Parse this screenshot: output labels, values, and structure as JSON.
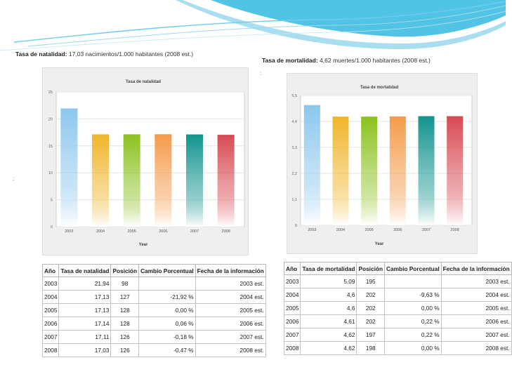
{
  "left": {
    "caption_label": "Tasa de natalidad:",
    "caption_value": "17,03 nacimientos/1.000 habitantes (2008 est.)",
    "table": {
      "headers": [
        "Año",
        "Tasa de natalidad",
        "Posición",
        "Cambio Porcentual",
        "Fecha de la información"
      ],
      "rows": [
        [
          "2003",
          "21,94",
          "98",
          "",
          "2003 est."
        ],
        [
          "2004",
          "17,13",
          "127",
          "-21,92 %",
          "2004 est."
        ],
        [
          "2005",
          "17,13",
          "128",
          "0,00 %",
          "2005 est."
        ],
        [
          "2006",
          "17,14",
          "128",
          "0,06 %",
          "2006 est."
        ],
        [
          "2007",
          "17,11",
          "126",
          "-0,18 %",
          "2007 est."
        ],
        [
          "2008",
          "17,03",
          "126",
          "-0,47 %",
          "2008 est."
        ]
      ]
    }
  },
  "right": {
    "caption_label": "Tasa de mortalidad:",
    "caption_value": "4,62 muertes/1.000 habitantes (2008 est.)",
    "table": {
      "headers": [
        "Año",
        "Tasa de mortalidad",
        "Posición",
        "Cambio Porcentual",
        "Fecha de la información"
      ],
      "rows": [
        [
          "2003",
          "5,09",
          "195",
          "",
          "2003 est."
        ],
        [
          "2004",
          "4,6",
          "202",
          "-9,63 %",
          "2004 est."
        ],
        [
          "2005",
          "4,6",
          "202",
          "0,00 %",
          "2005 est."
        ],
        [
          "2006",
          "4,61",
          "202",
          "0,22 %",
          "2006 est."
        ],
        [
          "2007",
          "4,62",
          "197",
          "0,22 %",
          "2007 est."
        ],
        [
          "2008",
          "4,62",
          "198",
          "0,00 %",
          "2008 est."
        ]
      ]
    }
  },
  "stray_marks": [
    ";",
    ":"
  ],
  "colors": {
    "wave_main": "#33b8e0",
    "wave_light": "#a9def0",
    "bar_2003": "#8cc7ee",
    "bar_2004": "#f0b52a",
    "bar_2005": "#8cc21f",
    "bar_2006": "#f59a4a",
    "bar_2007": "#12948f",
    "bar_2008": "#d84a52"
  },
  "chart_data": [
    {
      "type": "bar",
      "title": "Tasa de natalidad",
      "xlabel": "Year",
      "ylabel": "",
      "categories": [
        "2003",
        "2004",
        "2005",
        "2006",
        "2007",
        "2008"
      ],
      "values": [
        21.94,
        17.13,
        17.13,
        17.14,
        17.11,
        17.03
      ],
      "ylim": [
        0,
        25
      ],
      "yticks": [
        "0",
        "5",
        "10",
        "15",
        "20",
        "25"
      ],
      "ytick_values": [
        0,
        5,
        10,
        15,
        20,
        25
      ],
      "grid": true
    },
    {
      "type": "bar",
      "title": "Tasa de mortalidad",
      "xlabel": "Year",
      "ylabel": "",
      "categories": [
        "2003",
        "2004",
        "2005",
        "2006",
        "2007",
        "2008"
      ],
      "values": [
        5.09,
        4.6,
        4.6,
        4.61,
        4.62,
        4.62
      ],
      "ylim": [
        0,
        5.5
      ],
      "yticks": [
        "0",
        "1,1",
        "2,2",
        "3,3",
        "4,4",
        "5,5"
      ],
      "ytick_values": [
        0,
        1.1,
        2.2,
        3.3,
        4.4,
        5.5
      ],
      "grid": true
    }
  ]
}
